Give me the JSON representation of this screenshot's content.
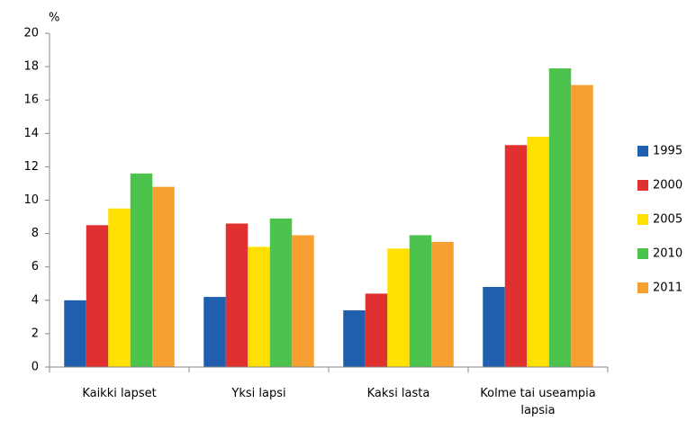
{
  "chart_data": {
    "type": "bar",
    "y_label": "%",
    "categories": [
      "Kaikki lapset",
      "Yksi lapsi",
      "Kaksi lasta",
      "Kolme tai useampia lapsia"
    ],
    "series": [
      {
        "name": "1995",
        "color": "#1f5fad",
        "values": [
          4.0,
          4.2,
          3.4,
          4.8
        ]
      },
      {
        "name": "2000",
        "color": "#e03030",
        "values": [
          8.5,
          8.6,
          4.4,
          13.3
        ]
      },
      {
        "name": "2005",
        "color": "#ffe000",
        "values": [
          9.5,
          7.2,
          7.1,
          13.8
        ]
      },
      {
        "name": "2010",
        "color": "#4cc34c",
        "values": [
          11.6,
          8.9,
          7.9,
          17.9
        ]
      },
      {
        "name": "2011",
        "color": "#f5a030",
        "values": [
          10.8,
          7.9,
          7.5,
          16.9
        ]
      }
    ],
    "ylim": [
      0,
      20
    ],
    "yticks": [
      0,
      2,
      4,
      6,
      8,
      10,
      12,
      14,
      16,
      18,
      20
    ],
    "legend": "right"
  }
}
